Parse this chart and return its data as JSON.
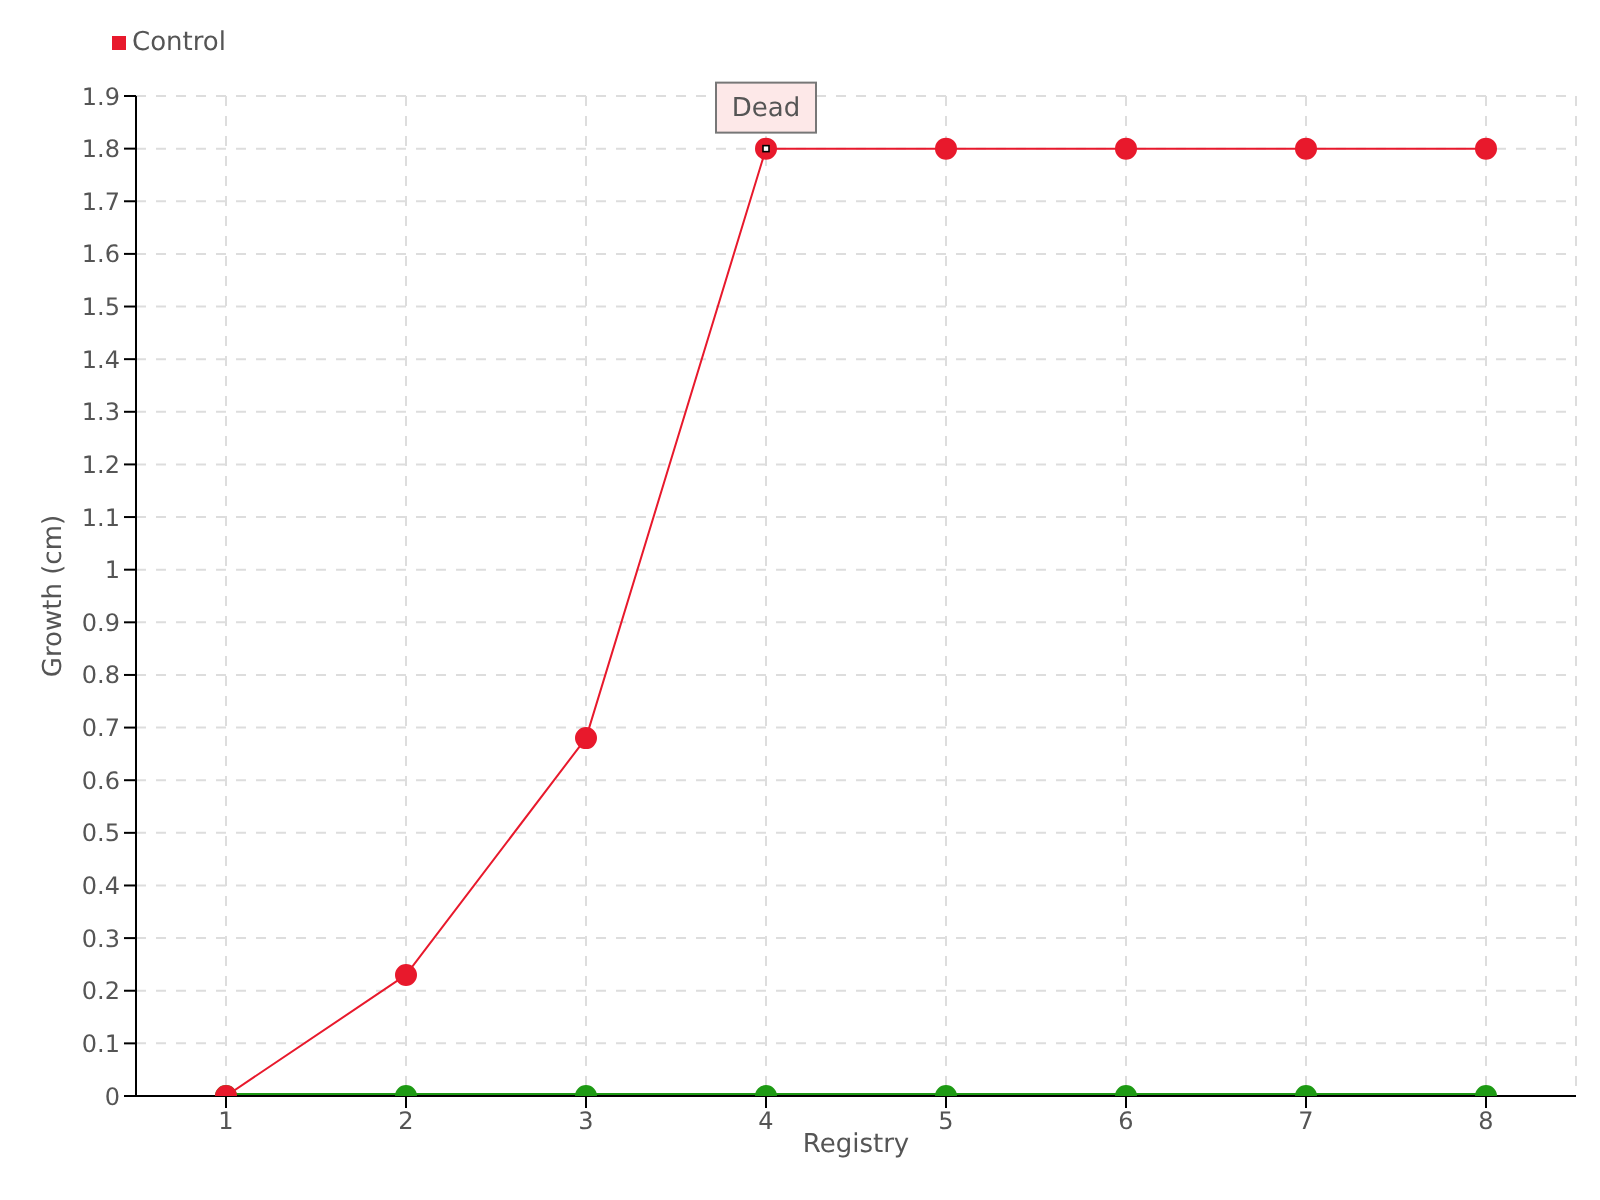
{
  "chart_data": {
    "type": "line",
    "xlabel": "Registry",
    "ylabel": "Growth (cm)",
    "categories": [
      "1",
      "2",
      "3",
      "4",
      "5",
      "6",
      "7",
      "8"
    ],
    "series": [
      {
        "color": "#1e9a14",
        "values": [
          0,
          0,
          0,
          0,
          0,
          0,
          0,
          0
        ]
      },
      {
        "name": "Control",
        "color": "#e8192c",
        "values": [
          0,
          0.23,
          0.68,
          1.8,
          1.8,
          1.8,
          1.8,
          1.8
        ]
      }
    ],
    "ylim": [
      0,
      1.9
    ],
    "yticks": [
      0,
      0.1,
      0.2,
      0.3,
      0.4,
      0.5,
      0.6,
      0.7,
      0.8,
      0.9,
      1,
      1.1,
      1.2,
      1.3,
      1.4,
      1.5,
      1.6,
      1.7,
      1.8,
      1.9
    ],
    "annotations": [
      {
        "text": "Dead",
        "x": "4",
        "y": 1.8
      }
    ],
    "grid": true,
    "legend": "top left",
    "marker": "circle",
    "line_style": "solid"
  }
}
